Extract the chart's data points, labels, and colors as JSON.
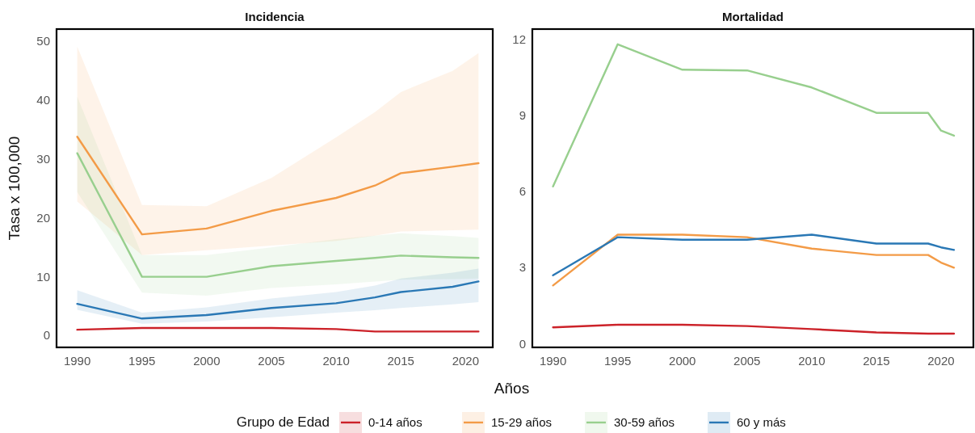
{
  "chart_data": [
    {
      "type": "line",
      "title": "Incidencia",
      "xlabel": "Años",
      "ylabel": "Tasa x 100,000",
      "legend_title": "Grupo de Edad",
      "legend": "bottom",
      "grid": false,
      "xlim": [
        1988.4,
        2022.1
      ],
      "ylim": [
        -2,
        52.1
      ],
      "xticks": [
        1990,
        1995,
        2000,
        2005,
        2010,
        2015,
        2020
      ],
      "yticks": [
        0,
        10,
        20,
        30,
        40,
        50
      ],
      "x": [
        1990,
        1995,
        2000,
        2005,
        2010,
        2013,
        2015,
        2019,
        2021
      ],
      "series": [
        {
          "name": "0-14 años",
          "color": "#cc2229",
          "values": [
            1.0,
            1.3,
            1.3,
            1.3,
            1.1,
            0.7,
            0.7,
            0.7,
            0.7
          ]
        },
        {
          "name": "15-29 años",
          "color": "#f39b47",
          "values": [
            33.8,
            17.2,
            18.2,
            21.2,
            23.4,
            25.5,
            27.6,
            28.7,
            29.3
          ],
          "lower": [
            22.8,
            13.7,
            14.5,
            15.3,
            16.1,
            17.0,
            17.7,
            17.9,
            18.0
          ],
          "upper": [
            49.1,
            22.2,
            22.0,
            26.8,
            33.7,
            38.0,
            41.4,
            45.0,
            48.0
          ]
        },
        {
          "name": "30-59 años",
          "color": "#98cf8e",
          "values": [
            31.0,
            10.0,
            10.0,
            11.8,
            12.7,
            13.2,
            13.6,
            13.3,
            13.2
          ],
          "lower": [
            24.4,
            7.3,
            6.8,
            8.1,
            8.7,
            9.2,
            9.5,
            9.6,
            9.7
          ],
          "upper": [
            40.6,
            13.7,
            13.7,
            15.0,
            16.4,
            17.0,
            17.4,
            16.9,
            16.6
          ]
        },
        {
          "name": "60 y más",
          "color": "#2a78b5",
          "values": [
            5.4,
            2.9,
            3.5,
            4.7,
            5.5,
            6.5,
            7.4,
            8.3,
            9.2
          ],
          "lower": [
            4.4,
            2.0,
            2.4,
            3.1,
            3.9,
            4.3,
            4.7,
            5.3,
            5.7
          ],
          "upper": [
            7.7,
            3.9,
            4.8,
            6.3,
            7.4,
            8.5,
            9.7,
            10.7,
            11.4
          ]
        }
      ]
    },
    {
      "type": "line",
      "title": "Mortalidad",
      "grid": false,
      "xlim": [
        1988.4,
        2022.5
      ],
      "ylim": [
        -0.14,
        12.4
      ],
      "xticks": [
        1990,
        1995,
        2000,
        2005,
        2010,
        2015,
        2020
      ],
      "yticks": [
        0,
        3,
        6,
        9,
        12
      ],
      "x": [
        1990,
        1995,
        2000,
        2005,
        2010,
        2015,
        2019,
        2020,
        2021
      ],
      "series": [
        {
          "color": "#cc2229",
          "values": [
            0.65,
            0.75,
            0.75,
            0.7,
            0.58,
            0.45,
            0.4,
            0.4,
            0.4
          ]
        },
        {
          "color": "#f39b47",
          "values": [
            2.3,
            4.3,
            4.3,
            4.2,
            3.75,
            3.5,
            3.5,
            3.2,
            3.0
          ]
        },
        {
          "color": "#98cf8e",
          "values": [
            6.2,
            11.8,
            10.8,
            10.77,
            10.1,
            9.1,
            9.1,
            8.4,
            8.2
          ]
        },
        {
          "color": "#2a78b5",
          "values": [
            2.7,
            4.2,
            4.1,
            4.1,
            4.3,
            3.95,
            3.95,
            3.8,
            3.7
          ]
        }
      ]
    }
  ]
}
